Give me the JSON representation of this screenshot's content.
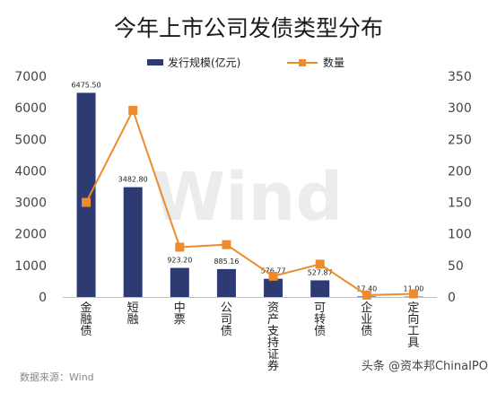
{
  "chart_data": {
    "type": "bar",
    "title": "今年上市公司发债类型分布",
    "categories": [
      "金融债",
      "短融",
      "中票",
      "公司债",
      "资产支持证券",
      "可转债",
      "企业债",
      "定向工具"
    ],
    "series": [
      {
        "name": "发行规模(亿元)",
        "type": "bar",
        "axis": "left",
        "color": "#2e3a72",
        "values": [
          6475.5,
          3482.8,
          923.2,
          885.16,
          576.77,
          527.87,
          17.4,
          11.0
        ],
        "labels": [
          "6475.50",
          "3482.80",
          "923.20",
          "885.16",
          "576.77",
          "527.87",
          "17.40",
          "11.00"
        ]
      },
      {
        "name": "数量",
        "type": "line",
        "axis": "right",
        "color": "#ed8b2d",
        "values": [
          150,
          296,
          79,
          83,
          33,
          52,
          3,
          5
        ]
      }
    ],
    "y_left": {
      "min": 0,
      "max": 7000,
      "ticks": [
        0,
        1000,
        2000,
        3000,
        4000,
        5000,
        6000,
        7000
      ]
    },
    "y_right": {
      "min": 0,
      "max": 350,
      "ticks": [
        0,
        50,
        100,
        150,
        200,
        250,
        300,
        350
      ]
    },
    "legend_position": "top-center",
    "grid": false
  },
  "watermark": "Wind",
  "source_note": "数据来源：Wind",
  "credit": "头条 @资本邦ChinaIPO"
}
